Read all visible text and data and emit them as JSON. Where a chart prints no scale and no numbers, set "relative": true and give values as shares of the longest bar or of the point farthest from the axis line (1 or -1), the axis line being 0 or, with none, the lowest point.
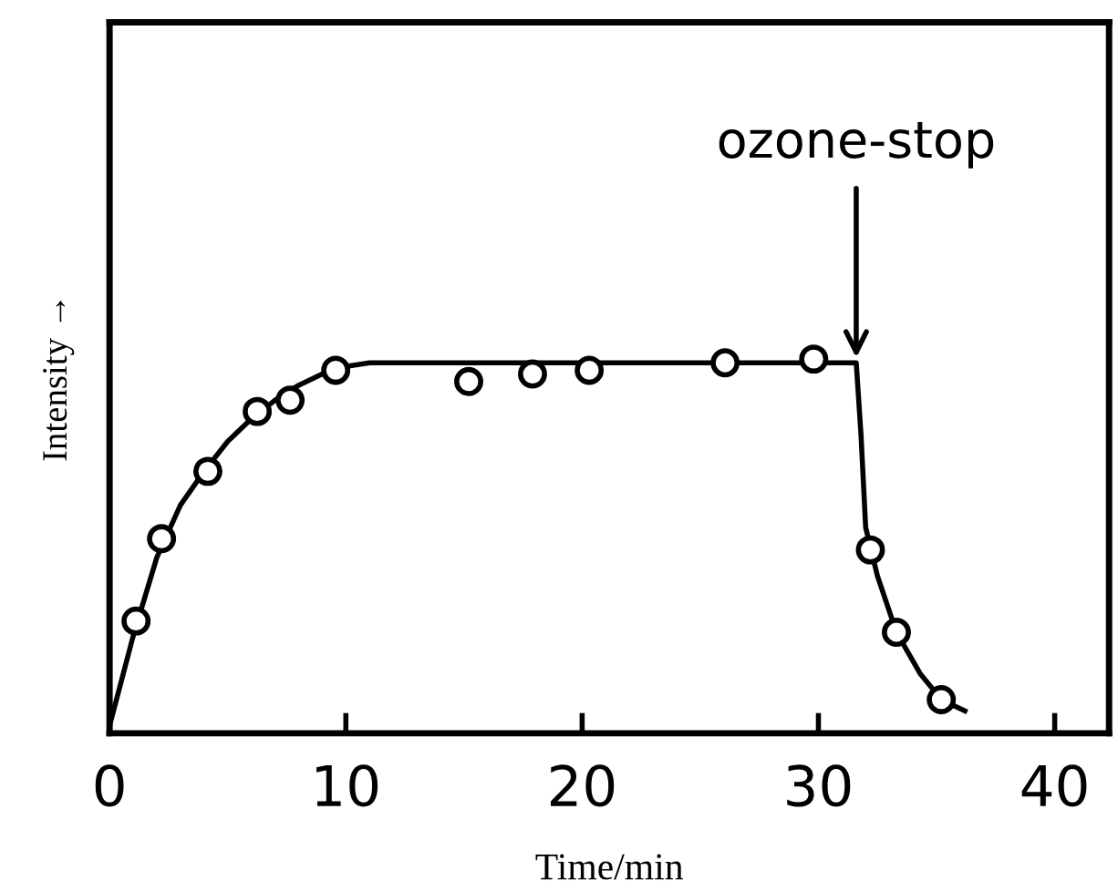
{
  "chart_data": {
    "type": "scatter",
    "relative": true,
    "xlabel": "Time/min",
    "ylabel": "Intensity →",
    "xlim": [
      0,
      42.3
    ],
    "xticks": [
      0,
      10,
      20,
      30,
      40
    ],
    "grid": false,
    "legend": false,
    "tick_labels": "x",
    "series": [
      {
        "color": "#000000",
        "marker": "circle",
        "x": [
          1.12,
          2.2,
          4.16,
          6.25,
          7.64,
          9.57,
          15.2,
          17.9,
          20.3,
          26.05,
          29.8,
          32.2,
          33.3,
          35.2
        ],
        "values": [
          0.3,
          0.52,
          0.7,
          0.86,
          0.89,
          0.97,
          0.94,
          0.96,
          0.97,
          0.99,
          1.0,
          0.49,
          0.27,
          0.09
        ]
      },
      {
        "type": "line",
        "color": "#000000",
        "marker": "none",
        "line_style": "solid",
        "x": [
          0,
          1,
          2,
          3,
          4,
          5,
          6,
          7,
          8,
          9,
          10,
          11,
          31.6,
          31.8,
          32.0,
          32.5,
          33.3,
          34.3,
          35.2,
          36.2
        ],
        "values": [
          0.02,
          0.26,
          0.47,
          0.61,
          0.7,
          0.78,
          0.84,
          0.89,
          0.93,
          0.96,
          0.98,
          0.99,
          0.99,
          0.8,
          0.55,
          0.42,
          0.27,
          0.16,
          0.09,
          0.06
        ]
      }
    ],
    "annotations": [
      {
        "text": "ozone-stop",
        "x": 31.6,
        "y": 0.99
      }
    ]
  }
}
